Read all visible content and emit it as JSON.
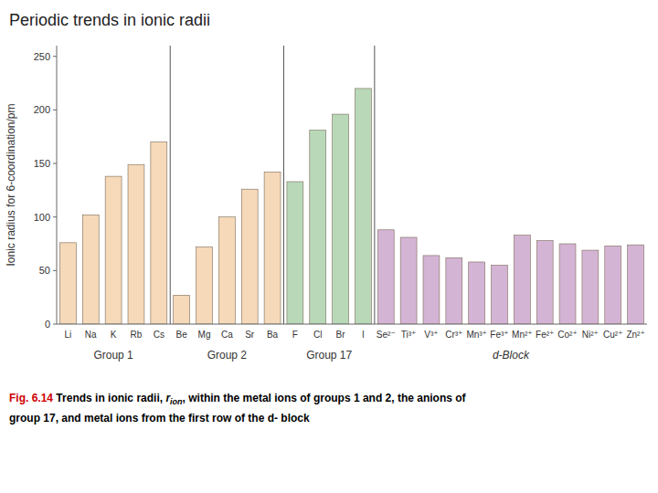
{
  "chart_data": {
    "type": "bar",
    "title": "Periodic trends in ionic radii",
    "ylabel": "Ionic radius for 6-coordination/pm",
    "categories": [
      "Li",
      "Na",
      "K",
      "Rb",
      "Cs",
      "Be",
      "Mg",
      "Ca",
      "Sr",
      "Ba",
      "F",
      "Cl",
      "Br",
      "I",
      "Se²⁻",
      "Ti³⁺",
      "V³⁺",
      "Cr³⁺",
      "Mn³⁺",
      "Fe³⁺",
      "Mn²⁺",
      "Fe²⁺",
      "Co²⁺",
      "Ni²⁺",
      "Cu²⁺",
      "Zn²⁺"
    ],
    "values": [
      76,
      102,
      138,
      149,
      170,
      27,
      72,
      100,
      126,
      142,
      133,
      181,
      196,
      220,
      88,
      81,
      64,
      62,
      58,
      55,
      83,
      78,
      75,
      69,
      73,
      74
    ],
    "colors": [
      "#F5D9B8",
      "#F5D9B8",
      "#F5D9B8",
      "#F5D9B8",
      "#F5D9B8",
      "#F5D9B8",
      "#F5D9B8",
      "#F5D9B8",
      "#F5D9B8",
      "#F5D9B8",
      "#B8D8B8",
      "#B8D8B8",
      "#B8D8B8",
      "#B8D8B8",
      "#D4B4D4",
      "#D4B4D4",
      "#D4B4D4",
      "#D4B4D4",
      "#D4B4D4",
      "#D4B4D4",
      "#D4B4D4",
      "#D4B4D4",
      "#D4B4D4",
      "#D4B4D4",
      "#D4B4D4",
      "#D4B4D4"
    ],
    "ylim": [
      0,
      260
    ],
    "yticks": [
      0,
      50,
      100,
      150,
      200,
      250
    ],
    "grid": false,
    "annotations": [
      "Group 1",
      "Group 2",
      "Group 17",
      "d-Block"
    ],
    "caption": [
      "Fig. 6.14",
      " Trends in ionic radii, ",
      "r",
      "ion",
      ", within the metal ions of groups 1 and 2, the anions of",
      "group 17, and metal ions from the first row of the d- block"
    ]
  }
}
